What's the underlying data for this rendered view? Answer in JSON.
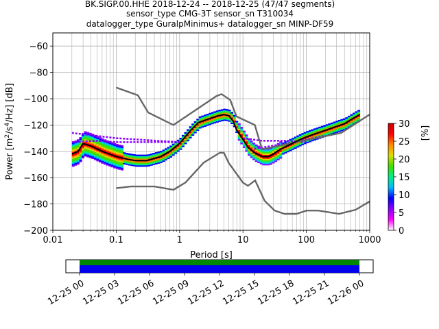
{
  "title_lines": [
    "BK.SIGP.00.HHE   2018-12-24 -- 2018-12-25  (47/47 segments)",
    "sensor_type CMG-3T sensor_sn T310034",
    "datalogger_type GuralpMinimus+ datalogger_sn MINP-DF59"
  ],
  "chart_data": {
    "type": "heatmap",
    "title": "BK.SIGP.00.HHE   2018-12-24 -- 2018-12-25  (47/47 segments)",
    "xlabel": "Period [s]",
    "ylabel": "Power [m²/s⁴/Hz] [dB]",
    "xscale": "log",
    "xlim": [
      0.01,
      1000
    ],
    "ylim": [
      -200,
      -50
    ],
    "grid": true,
    "x_ticks": [
      {
        "v": 0.01,
        "label": "0.01"
      },
      {
        "v": 0.1,
        "label": "0.1"
      },
      {
        "v": 1,
        "label": "1"
      },
      {
        "v": 10,
        "label": "10"
      },
      {
        "v": 100,
        "label": "100"
      },
      {
        "v": 1000,
        "label": "1000"
      }
    ],
    "y_ticks": [
      {
        "v": -60,
        "label": "−60"
      },
      {
        "v": -80,
        "label": "−80"
      },
      {
        "v": -100,
        "label": "−100"
      },
      {
        "v": -120,
        "label": "−120"
      },
      {
        "v": -140,
        "label": "−140"
      },
      {
        "v": -160,
        "label": "−160"
      },
      {
        "v": -180,
        "label": "−180"
      },
      {
        "v": -200,
        "label": "−200"
      }
    ],
    "colorbar": {
      "label": "[%]",
      "range": [
        0,
        30
      ],
      "ticks": [
        {
          "v": 0,
          "label": "0"
        },
        {
          "v": 5,
          "label": "5"
        },
        {
          "v": 10,
          "label": "10"
        },
        {
          "v": 15,
          "label": "15"
        },
        {
          "v": 20,
          "label": "20"
        },
        {
          "v": 25,
          "label": "25"
        },
        {
          "v": 30,
          "label": "30"
        }
      ],
      "colors": [
        "#ffffff",
        "#ff00ff",
        "#8800ff",
        "#0000ff",
        "#00bbff",
        "#00ee88",
        "#44dd00",
        "#dddd00",
        "#ff8800",
        "#ff0000",
        "#cc0000"
      ]
    },
    "mode_curve": {
      "periods": [
        0.02,
        0.025,
        0.03,
        0.04,
        0.06,
        0.1,
        0.15,
        0.2,
        0.3,
        0.5,
        0.7,
        1,
        1.5,
        2,
        3,
        4,
        5,
        6,
        7,
        8,
        10,
        12,
        15,
        20,
        25,
        30,
        40,
        60,
        80,
        100,
        150,
        200,
        300,
        400,
        500,
        700
      ],
      "db": [
        -142,
        -140,
        -134,
        -136,
        -140,
        -144,
        -146,
        -147,
        -147,
        -144,
        -140,
        -134,
        -124,
        -118,
        -115,
        -113,
        -112,
        -113,
        -117,
        -124,
        -131,
        -137,
        -141,
        -144,
        -144,
        -142,
        -138,
        -134,
        -131,
        -129,
        -126,
        -124,
        -121,
        -119,
        -116,
        -112
      ]
    },
    "noise_models": [
      {
        "name": "high-noise-model",
        "periods": [
          0.1,
          0.22,
          0.32,
          0.8,
          3.8,
          4.6,
          6.3,
          7.9,
          15.4,
          20,
          354.8,
          1000
        ],
        "db": [
          -91.5,
          -97.4,
          -110.5,
          -120,
          -98,
          -96.5,
          -101,
          -113.5,
          -120,
          -138.5,
          -126,
          -112
        ]
      },
      {
        "name": "low-noise-model",
        "periods": [
          0.1,
          0.17,
          0.4,
          0.8,
          1.24,
          2.4,
          4.3,
          5.0,
          6.0,
          10,
          12,
          15.6,
          21.9,
          31.6,
          45,
          70,
          101,
          154,
          328,
          600,
          1000
        ],
        "db": [
          -168,
          -166.7,
          -166.7,
          -169.2,
          -163.7,
          -148.6,
          -141.1,
          -141.1,
          -149,
          -163.8,
          -166.2,
          -162.1,
          -177.5,
          -185,
          -187.5,
          -187.5,
          -185,
          -185,
          -187.5,
          -184.4,
          -178
        ]
      }
    ],
    "scatter_lines": [
      {
        "periods": [
          0.02,
          0.1,
          1.0
        ],
        "db": [
          -126,
          -130,
          -133
        ]
      },
      {
        "periods": [
          0.02,
          0.05,
          0.1
        ],
        "db": [
          -133,
          -132,
          -133
        ]
      },
      {
        "periods": [
          0.1,
          1.0
        ],
        "db": [
          -133,
          -133
        ]
      },
      {
        "periods": [
          10,
          20,
          50,
          100
        ],
        "db": [
          -130,
          -132,
          -132,
          -133
        ]
      },
      {
        "periods": [
          15,
          50,
          200
        ],
        "db": [
          -138,
          -134,
          -128
        ]
      }
    ]
  },
  "time_bar": {
    "labels": [
      "12-25 00",
      "12-25 03",
      "12-25 06",
      "12-25 09",
      "12-25 12",
      "12-25 15",
      "12-25 18",
      "12-25 21",
      "12-26 00"
    ],
    "coverage_colors": [
      "#008800",
      "#0000ee"
    ]
  }
}
